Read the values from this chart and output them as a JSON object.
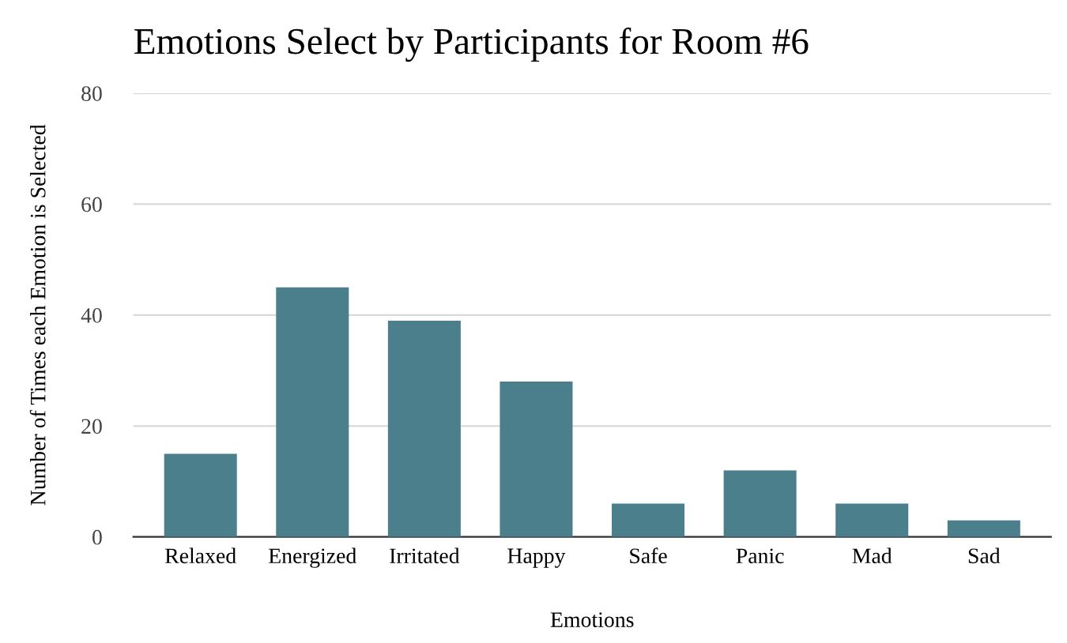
{
  "chart_data": {
    "type": "bar",
    "title": "Emotions Select by Participants for Room #6",
    "xlabel": "Emotions",
    "ylabel": "Number of Times each Emotion is Selected",
    "categories": [
      "Relaxed",
      "Energized",
      "Irritated",
      "Happy",
      "Safe",
      "Panic",
      "Mad",
      "Sad"
    ],
    "values": [
      15,
      45,
      39,
      28,
      6,
      12,
      6,
      3
    ],
    "color": "#4a7f8b",
    "ylim": [
      0,
      80
    ],
    "yticks": [
      0,
      20,
      40,
      60,
      80
    ],
    "grid": "y"
  }
}
